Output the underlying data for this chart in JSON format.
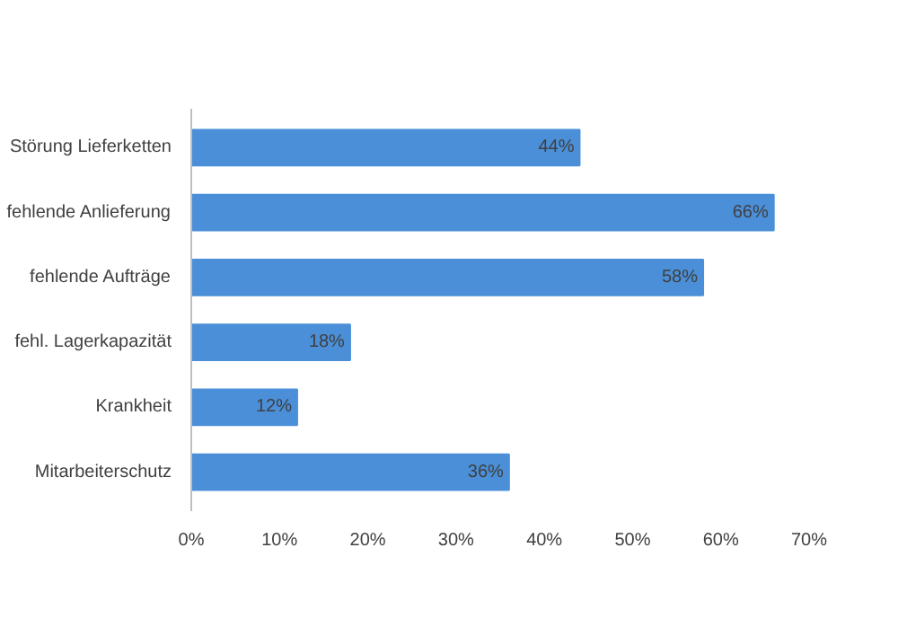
{
  "chart_data": {
    "type": "bar",
    "orientation": "horizontal",
    "categories": [
      "Störung Lieferketten",
      "fehlende Anlieferung",
      "fehlende Aufträge",
      "fehl. Lagerkapazität",
      "Krankheit",
      "Mitarbeiterschutz"
    ],
    "values": [
      44,
      66,
      58,
      18,
      12,
      36
    ],
    "value_labels": [
      "44%",
      "66%",
      "58%",
      "18%",
      "12%",
      "36%"
    ],
    "color": "#4a8fd8",
    "xlim": [
      0,
      70
    ],
    "xticks": [
      {
        "value": 0,
        "label": "0%"
      },
      {
        "value": 10,
        "label": "10%"
      },
      {
        "value": 20,
        "label": "20%"
      },
      {
        "value": 30,
        "label": "30%"
      },
      {
        "value": 40,
        "label": "40%"
      },
      {
        "value": 50,
        "label": "50%"
      },
      {
        "value": 60,
        "label": "60%"
      },
      {
        "value": 70,
        "label": "70%"
      }
    ],
    "grid": false
  }
}
